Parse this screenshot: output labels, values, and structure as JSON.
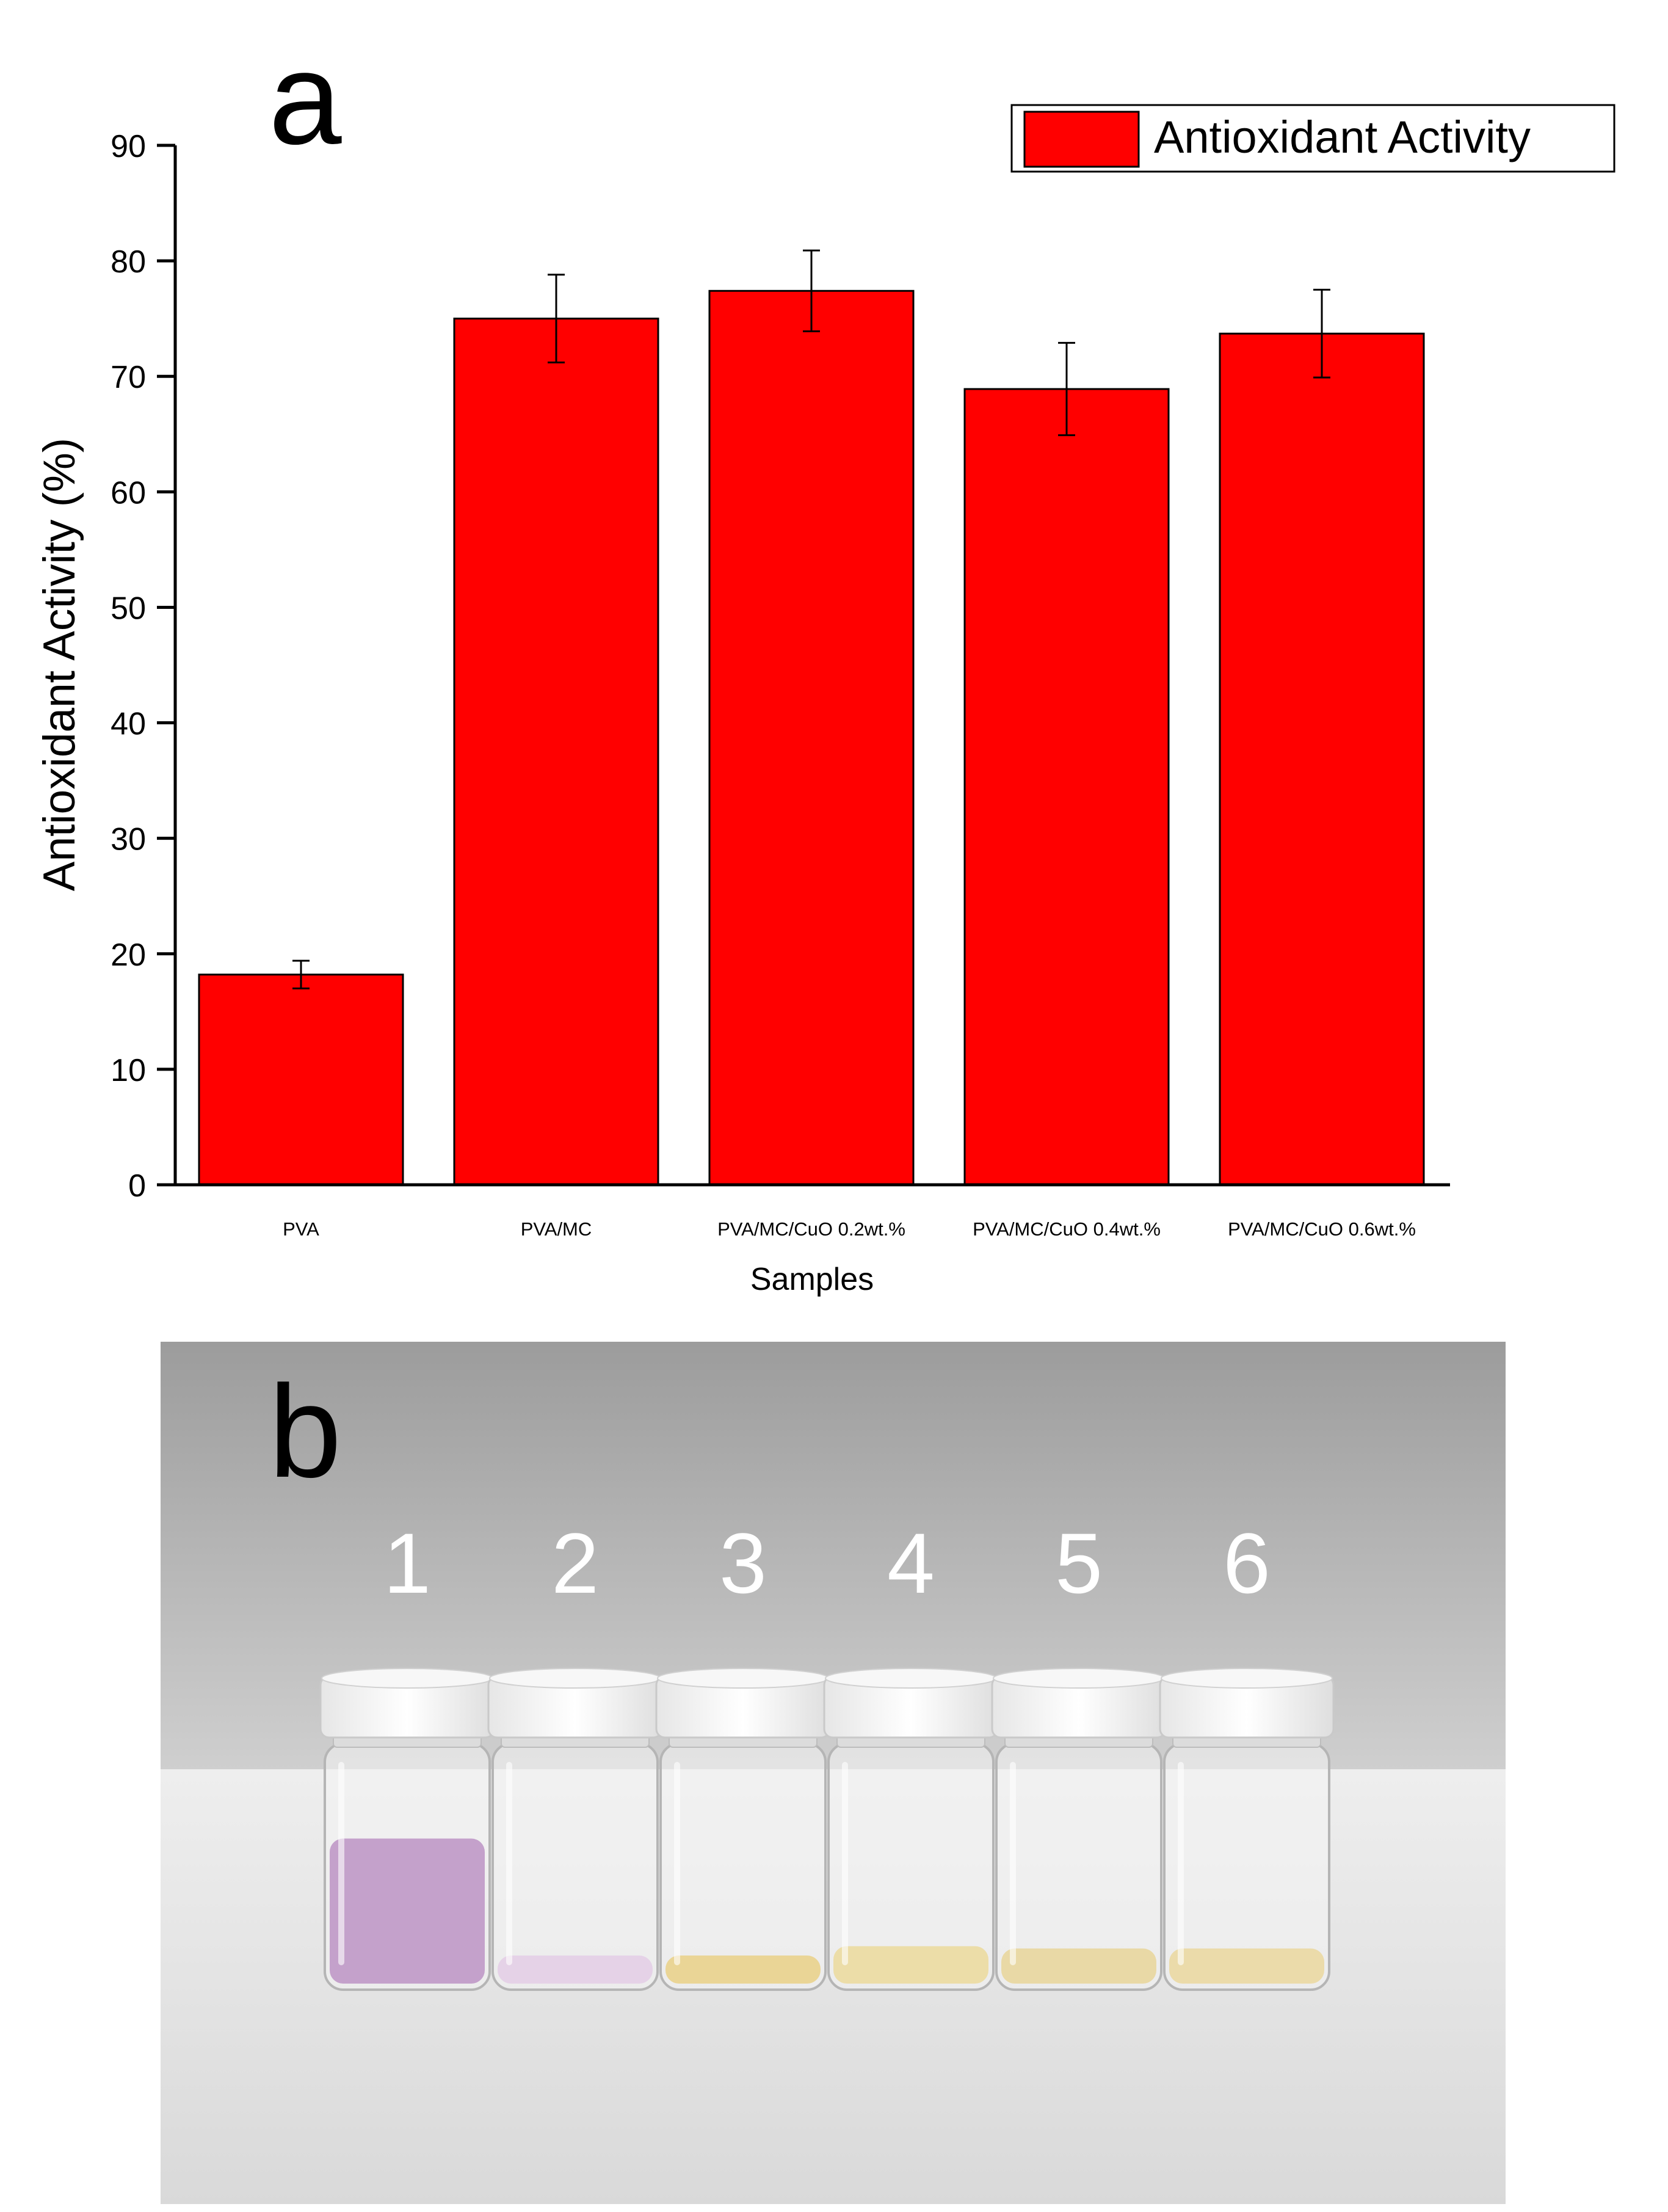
{
  "panel_a": {
    "label": "a"
  },
  "panel_b": {
    "label": "b",
    "vial_numbers": [
      "1",
      "2",
      "3",
      "4",
      "5",
      "6"
    ],
    "vials": [
      {
        "number": "1",
        "liquid_color": "#c09ac8",
        "liquid_level": 0.62
      },
      {
        "number": "2",
        "liquid_color": "#e4cfe6",
        "liquid_level": 0.12
      },
      {
        "number": "3",
        "liquid_color": "#e9d28e",
        "liquid_level": 0.12
      },
      {
        "number": "4",
        "liquid_color": "#ebdba2",
        "liquid_level": 0.16
      },
      {
        "number": "5",
        "liquid_color": "#e8d7a0",
        "liquid_level": 0.15
      },
      {
        "number": "6",
        "liquid_color": "#ead9a4",
        "liquid_level": 0.15
      }
    ]
  },
  "chart_data": {
    "type": "bar",
    "title": "",
    "xlabel": "Samples",
    "ylabel": "Antioxidant Activity (%)",
    "ylim": [
      0,
      90
    ],
    "yticks": [
      0,
      10,
      20,
      30,
      40,
      50,
      60,
      70,
      80,
      90
    ],
    "categories": [
      "PVA",
      "PVA/MC",
      "PVA/MC/CuO 0.2wt.%",
      "PVA/MC/CuO 0.4wt.%",
      "PVA/MC/CuO 0.6wt.%"
    ],
    "series": [
      {
        "name": "Antioxidant Activity",
        "values": [
          18.2,
          75.0,
          77.4,
          68.9,
          73.7
        ],
        "errors": [
          1.2,
          3.8,
          3.5,
          4.0,
          3.8
        ],
        "color": "#ff0000"
      }
    ],
    "legend": {
      "position": "top-right",
      "entries": [
        "Antioxidant Activity"
      ]
    },
    "grid": false
  }
}
